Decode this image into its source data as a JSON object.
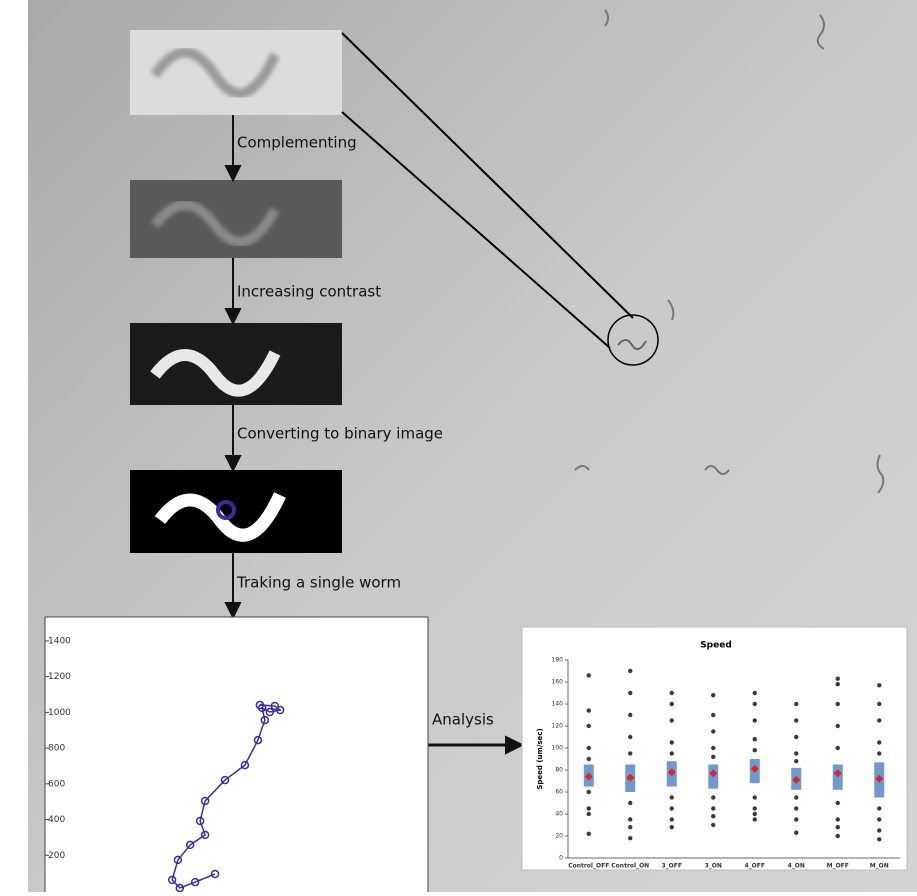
{
  "steps": [
    "Complementing",
    "Increasing contrast",
    "Converting to binary image",
    "Traking a single worm"
  ],
  "analysis_label": "Analysis",
  "track_plot": {
    "xlim": [
      0,
      1000
    ],
    "ylim": [
      0,
      1534
    ],
    "yticks": [
      200,
      400,
      600,
      800,
      1000,
      1200,
      1400
    ],
    "x": [
      561,
      600,
      614,
      587,
      567,
      574,
      556,
      522,
      470,
      418,
      405,
      418,
      379,
      347,
      332,
      352,
      392,
      444
    ],
    "y": [
      1041,
      1036,
      1013,
      1002,
      1025,
      957,
      845,
      705,
      621,
      504,
      392,
      314,
      258,
      174,
      62,
      17,
      50,
      95
    ],
    "color": "#3b2c9c"
  },
  "speed_chart": {
    "title": "Speed",
    "y_label": "Speed (um/sec)",
    "categories": [
      "Control_OFF",
      "Control_ON",
      "3_OFF",
      "3_ON",
      "4_OFF",
      "4_ON",
      "M_OFF",
      "M_ON"
    ],
    "ylim": [
      0,
      180
    ],
    "yticks": [
      0,
      20,
      40,
      60,
      80,
      100,
      120,
      140,
      160,
      180
    ],
    "means": [
      74,
      73,
      78,
      77,
      81,
      71,
      77,
      72
    ],
    "q1": [
      65,
      60,
      65,
      63,
      68,
      62,
      62,
      55
    ],
    "q3": [
      85,
      85,
      88,
      85,
      90,
      82,
      85,
      87
    ],
    "points": [
      [
        166,
        134,
        120,
        100,
        90,
        60,
        45,
        40,
        22
      ],
      [
        170,
        150,
        130,
        110,
        95,
        50,
        35,
        28,
        18
      ],
      [
        150,
        140,
        125,
        105,
        95,
        55,
        45,
        35,
        28
      ],
      [
        148,
        130,
        115,
        100,
        92,
        55,
        45,
        38,
        30
      ],
      [
        150,
        140,
        125,
        108,
        98,
        55,
        45,
        40,
        35
      ],
      [
        140,
        125,
        110,
        95,
        88,
        55,
        45,
        35,
        23
      ],
      [
        163,
        158,
        140,
        120,
        100,
        50,
        35,
        28,
        20
      ],
      [
        157,
        140,
        125,
        105,
        95,
        45,
        35,
        25,
        17
      ]
    ],
    "box_color": "#4f7fbf",
    "mean_color": "#d9262a",
    "point_color": "#3a3a3a"
  }
}
